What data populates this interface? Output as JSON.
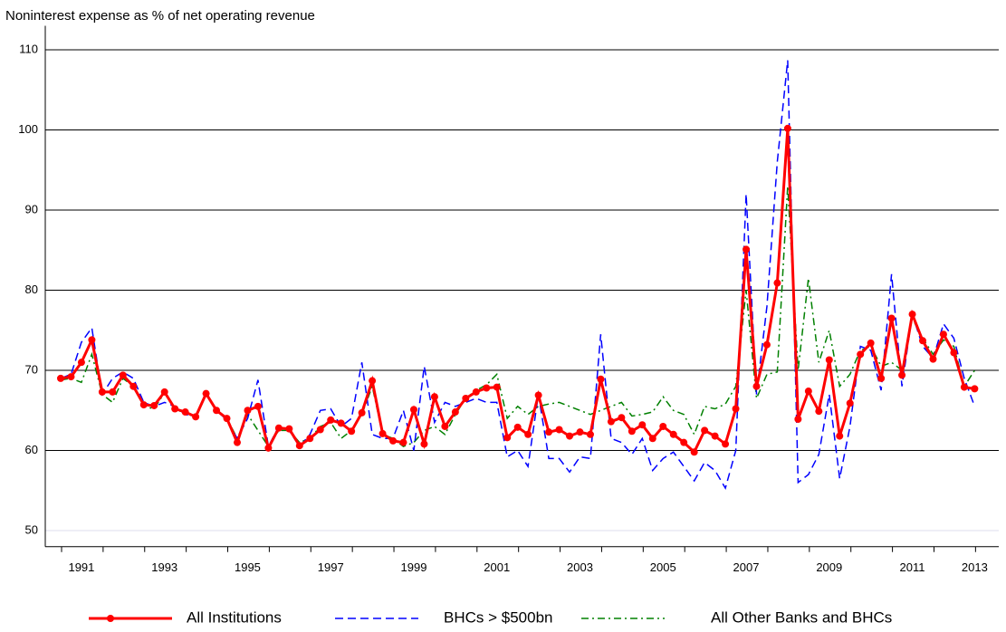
{
  "chart_data": {
    "type": "line",
    "title": "Noninterest expense as % of net operating revenue",
    "categories": [
      null,
      null,
      "1991",
      null,
      null,
      null,
      null,
      null,
      null,
      null,
      "1993",
      null,
      null,
      null,
      null,
      null,
      null,
      null,
      "1995",
      null,
      null,
      null,
      null,
      null,
      null,
      null,
      "1997",
      null,
      null,
      null,
      null,
      null,
      null,
      null,
      "1999",
      null,
      null,
      null,
      null,
      null,
      null,
      null,
      "2001",
      null,
      null,
      null,
      null,
      null,
      null,
      null,
      "2003",
      null,
      null,
      null,
      null,
      null,
      null,
      null,
      "2005",
      null,
      null,
      null,
      null,
      null,
      null,
      null,
      "2007",
      null,
      null,
      null,
      null,
      null,
      null,
      null,
      "2009",
      null,
      null,
      null,
      null,
      null,
      null,
      null,
      "2011",
      null,
      null,
      null,
      null,
      null,
      "2013"
    ],
    "ylim": [
      48,
      113
    ],
    "yticks": [
      50,
      60,
      70,
      80,
      90,
      100,
      110
    ],
    "grid": true,
    "legend": "bottom",
    "series": [
      {
        "name": "All Institutions",
        "color": "#ff0000",
        "line_style": "solid",
        "marker": "circle",
        "values": [
          69,
          69.2,
          71,
          73.8,
          67.3,
          67.3,
          69.4,
          68,
          65.7,
          65.6,
          67.3,
          65.2,
          64.8,
          64.2,
          67.1,
          65,
          64,
          61,
          65,
          65.5,
          60.3,
          62.8,
          62.7,
          60.6,
          61.5,
          62.6,
          63.8,
          63.4,
          62.4,
          64.7,
          68.7,
          62.1,
          61.2,
          61,
          65.1,
          60.8,
          66.7,
          63,
          64.8,
          66.5,
          67.3,
          67.8,
          67.9,
          61.6,
          62.9,
          62,
          66.9,
          62.3,
          62.6,
          61.8,
          62.3,
          62,
          68.9,
          63.6,
          64.1,
          62.4,
          63.2,
          61.5,
          63,
          62,
          61,
          59.8,
          62.5,
          61.8,
          60.8,
          65.2,
          85.1,
          68,
          73.2,
          80.9,
          100.2,
          63.9,
          67.4,
          64.9,
          71.3,
          61.8,
          65.9,
          72,
          73.4,
          69,
          76.5,
          69.4,
          77,
          73.7,
          71.4,
          74.5,
          72.2,
          67.9,
          67.7
        ]
      },
      {
        "name": "BHCs > $500bn",
        "color": "#0000ff",
        "line_style": "dashed",
        "values": [
          69,
          69.5,
          73.5,
          75.3,
          67,
          69,
          69.8,
          69,
          66,
          65.5,
          66,
          65.5,
          64.5,
          64.2,
          67,
          65,
          63.8,
          61.5,
          64,
          68.8,
          60.5,
          63,
          62.5,
          60.5,
          62,
          65,
          65.2,
          63,
          64,
          71,
          62,
          61.5,
          61.5,
          65,
          60,
          70.5,
          63.5,
          66,
          65.5,
          66,
          66.5,
          66,
          66,
          59.2,
          60,
          58,
          67,
          59,
          59,
          57.3,
          59.2,
          59,
          74.5,
          61.5,
          61,
          59.5,
          61.5,
          57.5,
          59,
          59.8,
          58,
          56.2,
          58.5,
          57.5,
          55.3,
          60,
          92,
          67,
          78,
          96,
          108.7,
          56,
          57,
          59.5,
          67,
          56.5,
          63,
          73,
          72.5,
          67.5,
          82,
          68,
          77,
          73,
          71.5,
          75.8,
          74,
          69,
          65.5
        ]
      },
      {
        "name": "All Other Banks and BHCs",
        "color": "#008000",
        "line_style": "dashdot",
        "values": [
          68.8,
          69,
          68.5,
          72,
          67,
          66,
          69,
          68,
          65.5,
          65.2,
          67.2,
          65,
          64.8,
          64,
          67,
          65,
          64,
          61.5,
          64.5,
          62.5,
          60.5,
          62.5,
          62.5,
          61,
          61.5,
          63,
          63.5,
          61.5,
          62.5,
          64.5,
          68,
          62,
          61.5,
          60.5,
          61,
          62.5,
          63,
          62,
          64.5,
          66.5,
          67.5,
          68.2,
          69.5,
          64,
          65.5,
          64.5,
          65.5,
          65.8,
          66,
          65.5,
          65,
          64.5,
          65,
          65.5,
          66,
          64.3,
          64.5,
          64.8,
          66.7,
          65,
          64.5,
          62,
          65.5,
          65.2,
          65.8,
          68,
          80,
          66.5,
          69.5,
          69.8,
          93,
          70,
          81.5,
          71,
          75,
          68,
          69.5,
          72.5,
          73,
          70.5,
          71,
          70,
          76.5,
          74,
          72,
          73.8,
          73,
          68,
          70
        ]
      }
    ]
  }
}
